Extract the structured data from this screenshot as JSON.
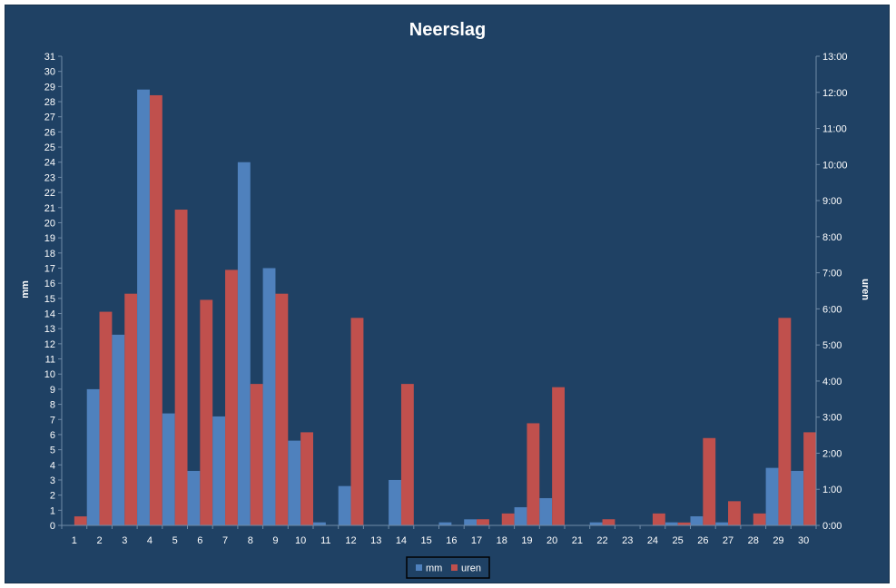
{
  "chart_data": {
    "type": "bar",
    "title": "Neerslag",
    "ylabel": "mm",
    "y2label": "uren",
    "ylim": [
      0,
      31
    ],
    "y2lim_hours": [
      0,
      13
    ],
    "y2_tick_labels": [
      "0:00",
      "1:00",
      "2:00",
      "3:00",
      "4:00",
      "5:00",
      "6:00",
      "7:00",
      "8:00",
      "9:00",
      "10:00",
      "11:00",
      "12:00",
      "13:00"
    ],
    "categories": [
      "1",
      "2",
      "3",
      "4",
      "5",
      "6",
      "7",
      "8",
      "9",
      "10",
      "11",
      "12",
      "13",
      "14",
      "15",
      "16",
      "17",
      "18",
      "19",
      "20",
      "21",
      "22",
      "23",
      "24",
      "25",
      "26",
      "27",
      "28",
      "29",
      "30"
    ],
    "series": [
      {
        "name": "mm",
        "axis": "left",
        "color": "#4f81bd",
        "values": [
          0,
          9,
          12.6,
          28.8,
          7.4,
          3.6,
          7.2,
          24,
          17,
          5.6,
          0.2,
          2.6,
          0,
          3,
          0,
          0.2,
          0.4,
          0,
          1.2,
          1.8,
          0,
          0.2,
          0,
          0,
          0.2,
          0.6,
          0.2,
          0,
          3.8,
          3.6
        ]
      },
      {
        "name": "uren",
        "axis": "right",
        "color": "#c0504d",
        "values_hours": [
          0.25,
          5.92,
          6.42,
          11.92,
          8.75,
          6.25,
          7.08,
          3.92,
          6.42,
          2.58,
          0,
          5.75,
          0,
          3.92,
          0,
          0,
          0.17,
          0.33,
          2.83,
          3.83,
          0,
          0.17,
          0,
          0.33,
          0.08,
          2.42,
          0.67,
          0.33,
          5.75,
          2.58
        ]
      }
    ],
    "legend": {
      "position": "bottom-center",
      "entries": [
        "mm",
        "uren"
      ]
    },
    "grid": false
  }
}
